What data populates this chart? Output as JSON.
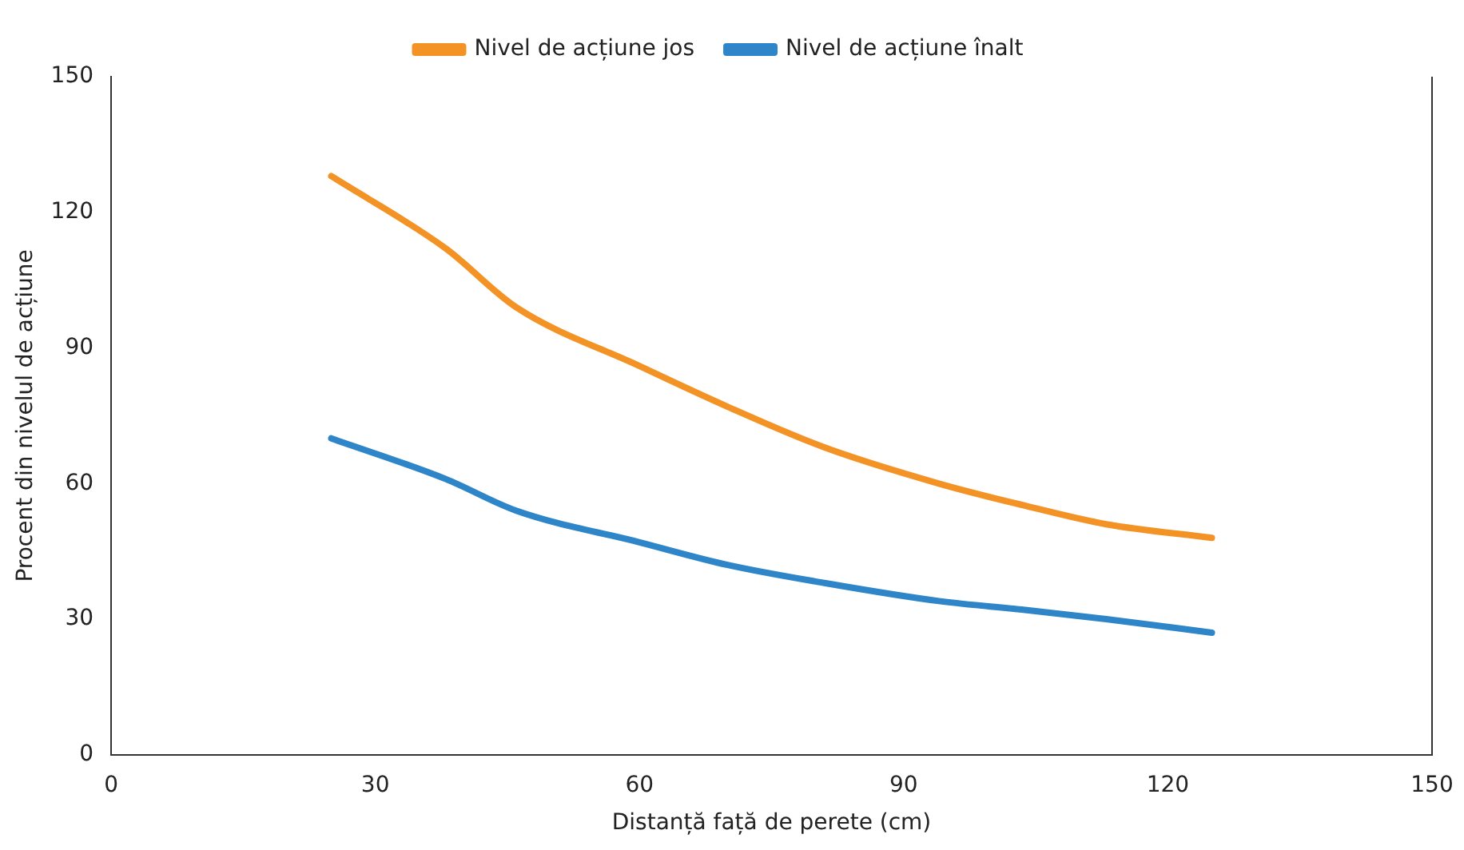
{
  "chart_data": {
    "type": "line",
    "xlabel": "Distanță față de perete (cm)",
    "ylabel": "Procent din nivelul de acțiune",
    "xlim": [
      0,
      150
    ],
    "xticks": [
      0,
      30,
      60,
      90,
      120,
      150
    ],
    "ylim": [
      0,
      150
    ],
    "yticks": [
      0,
      30,
      60,
      90,
      120,
      150
    ],
    "grid": false,
    "legend": "top",
    "marker": "none",
    "line_style": "solid",
    "series": [
      {
        "name": "Nivel de acțiune jos",
        "color": "#f39325",
        "x": [
          25,
          38,
          46,
          60,
          70,
          81,
          94,
          104,
          113,
          125
        ],
        "values": [
          128,
          112,
          99,
          86,
          77,
          68,
          60,
          55,
          51,
          48
        ]
      },
      {
        "name": "Nivel de acțiune înalt",
        "color": "#2e86c8",
        "x": [
          25,
          38,
          46,
          60,
          70,
          81,
          94,
          104,
          113,
          125
        ],
        "values": [
          70,
          61,
          54,
          47,
          42,
          38,
          34,
          32,
          30,
          27
        ]
      }
    ]
  }
}
